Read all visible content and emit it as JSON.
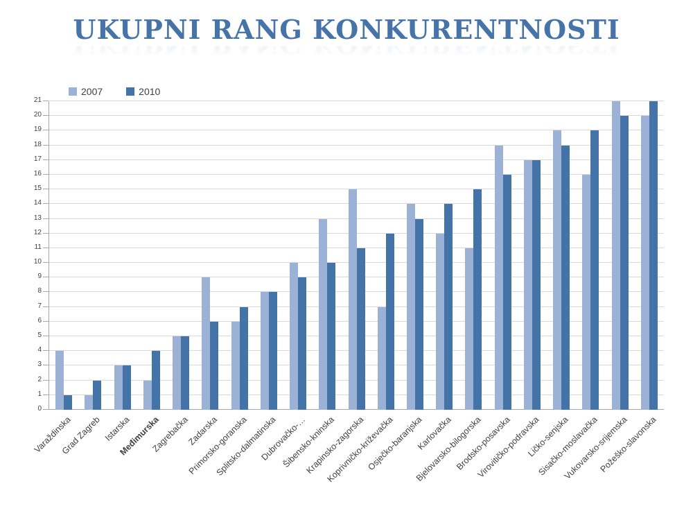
{
  "chart_data": {
    "type": "bar",
    "title": "UKUPNI RANG KONKURENTNOSTI",
    "categories": [
      "Varaždinska",
      "Grad Zagreb",
      "Istarska",
      "Međimurska",
      "Zagrebačka",
      "Zadarska",
      "Primorsko-goranska",
      "Splitsko-dalmatinska",
      "Dubrovačko-…",
      "Šibensko-kninska",
      "Krapinsko-zagorska",
      "Koprivničko-križevačka",
      "Osječko-baranjska",
      "Karlovačka",
      "Bjelovarsko-bilogorska",
      "Brodsko-posavska",
      "Virovitičko-podravska",
      "Ličko-senjska",
      "Sisačko-moslavačka",
      "Vukovarsko-srijemska",
      "Požeško-slavonska"
    ],
    "highlighted_category": "Međimurska",
    "series": [
      {
        "name": "2007",
        "color": "#9BB2D6",
        "values": [
          4,
          1,
          3,
          2,
          5,
          9,
          6,
          8,
          10,
          13,
          15,
          7,
          14,
          12,
          11,
          18,
          17,
          19,
          16,
          21,
          20
        ]
      },
      {
        "name": "2010",
        "color": "#4473A8",
        "values": [
          1,
          2,
          3,
          4,
          5,
          6,
          7,
          8,
          9,
          10,
          11,
          12,
          13,
          14,
          15,
          16,
          17,
          18,
          19,
          20,
          21
        ]
      }
    ],
    "xlabel": "",
    "ylabel": "",
    "ylim": [
      0,
      21
    ],
    "yticks": [
      0,
      1,
      2,
      3,
      4,
      5,
      6,
      7,
      8,
      9,
      10,
      11,
      12,
      13,
      14,
      15,
      16,
      17,
      18,
      19,
      20,
      21
    ],
    "grid": true,
    "legend_position": "top-left"
  },
  "style": {
    "title_color": "#4674A9",
    "label_color": "#404040",
    "gridline_color": "#D9D9D9",
    "axis_color": "#A6A6A6",
    "background": "#FFFFFF"
  }
}
